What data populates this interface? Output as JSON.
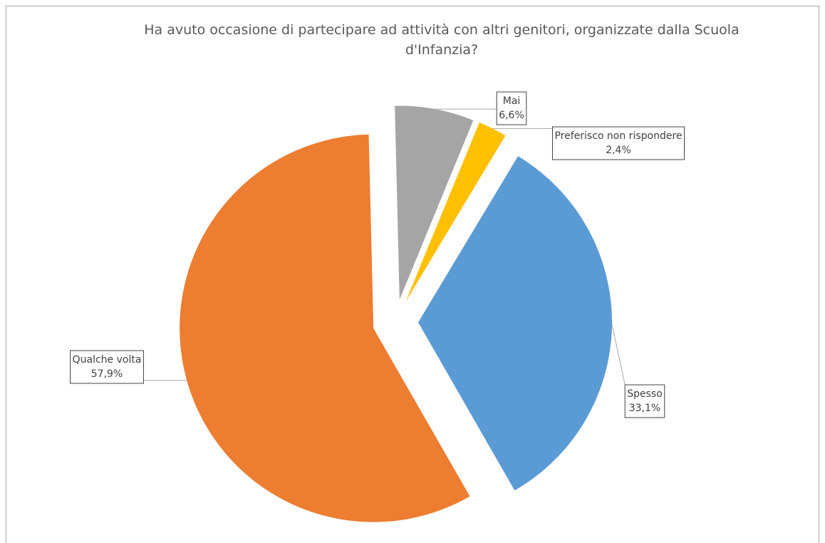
{
  "chart_data": {
    "type": "pie",
    "title": "Ha avuto occasione di partecipare ad attività con altri genitori, organizzate dalla Scuola d'Infanzia?",
    "categories": [
      "Spesso",
      "Qualche volta",
      "Mai",
      "Preferisco non rispondere"
    ],
    "values": [
      33.1,
      57.9,
      6.6,
      2.4
    ],
    "value_labels": [
      "33,1%",
      "57,9%",
      "6,6%",
      "2,4%"
    ],
    "colors": [
      "#5b9bd5",
      "#ed7d31",
      "#a5a5a5",
      "#ffc000"
    ]
  }
}
